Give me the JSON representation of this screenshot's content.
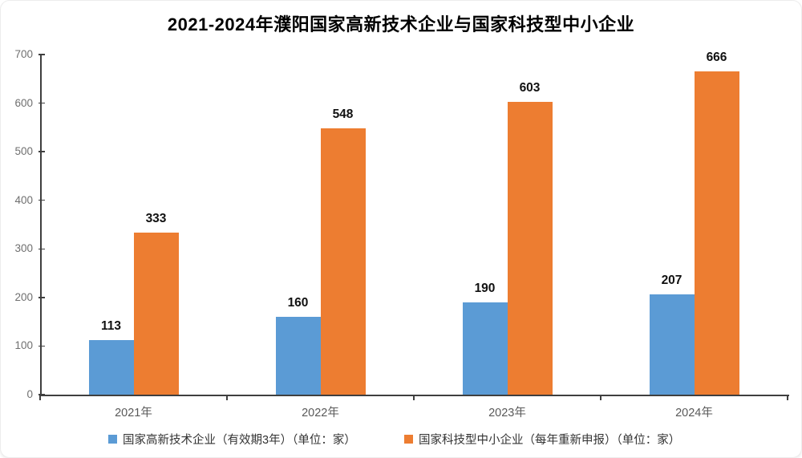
{
  "chart_data": {
    "type": "bar",
    "title": "2021-2024年濮阳国家高新技术企业与国家科技型中小企业",
    "categories": [
      "2021年",
      "2022年",
      "2023年",
      "2024年"
    ],
    "series": [
      {
        "name": "国家高新技术企业（有效期3年）（单位：家）",
        "color": "#5B9BD5",
        "values": [
          113,
          160,
          190,
          207
        ]
      },
      {
        "name": "国家科技型中小企业（每年重新申报）（单位：家）",
        "color": "#ED7D31",
        "values": [
          333,
          548,
          603,
          666
        ]
      }
    ],
    "ylim": [
      0,
      700
    ],
    "yticks": [
      0,
      100,
      200,
      300,
      400,
      500,
      600,
      700
    ],
    "xlabel": "",
    "ylabel": "",
    "grid": false,
    "data_labels": true,
    "legend_position": "bottom",
    "title_color": "#000000",
    "axis_color": "#3f3f3f",
    "tick_label_color": "#6f6f6f",
    "category_label_color": "#595959",
    "data_label_color": "#111111",
    "legend_text_color": "#333333",
    "background": "#ffffff"
  }
}
